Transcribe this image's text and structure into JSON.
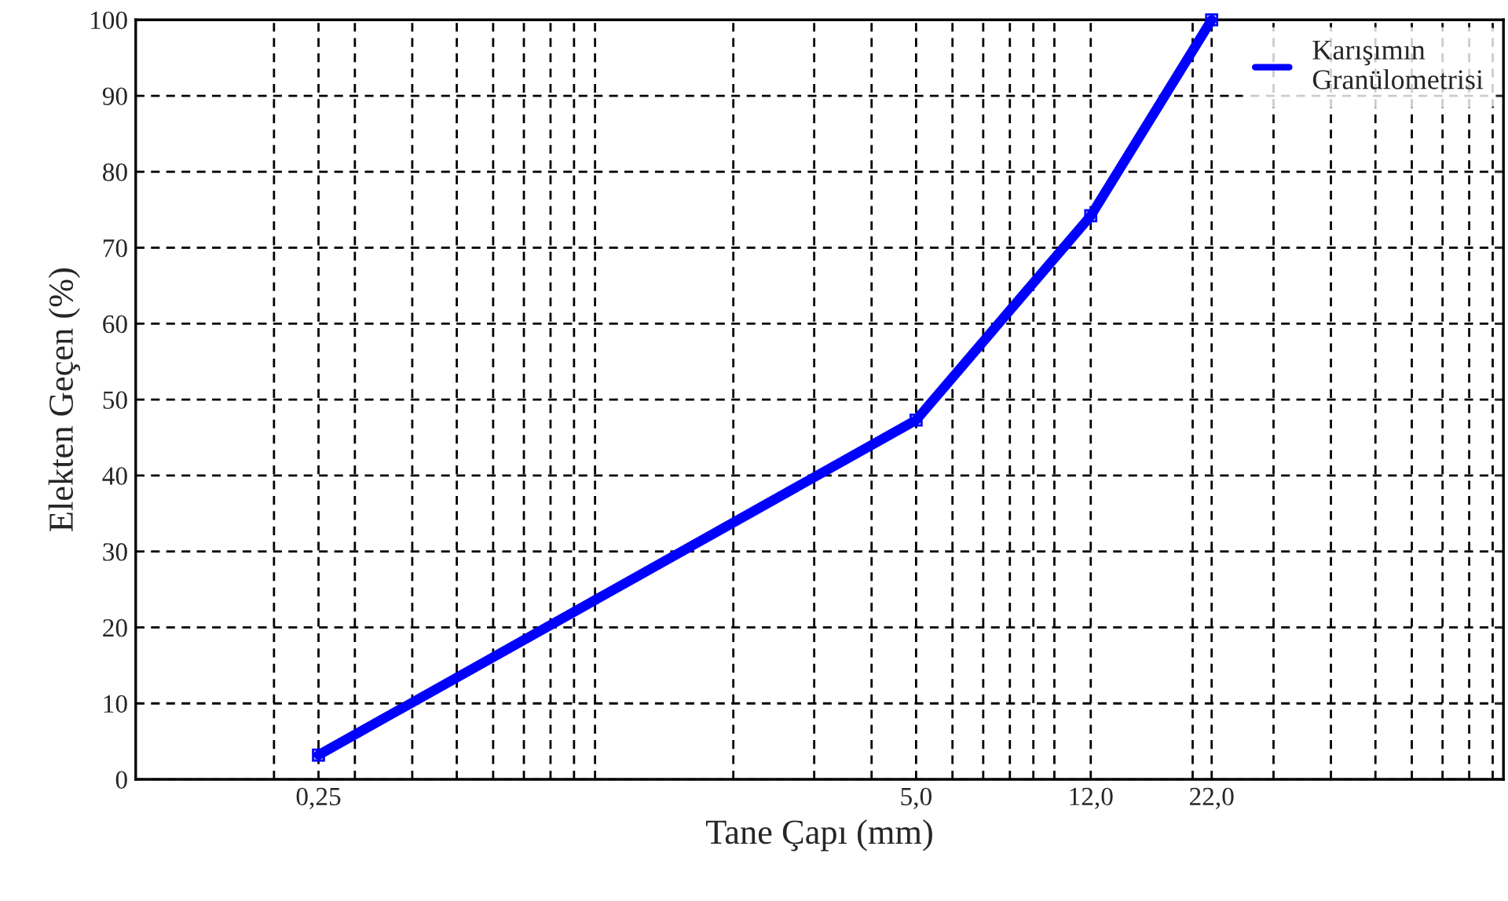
{
  "chart_data": {
    "type": "line",
    "xlabel": "Tane Çapı (mm)",
    "ylabel": "Elekten Geçen (%)",
    "x": [
      0.25,
      5.0,
      12.0,
      22.0
    ],
    "series": [
      {
        "name": "Karışımın\nGranülometrisi",
        "color": "#0000ff",
        "values": [
          3.2,
          47.3,
          74.2,
          100
        ]
      }
    ],
    "log": "x",
    "xlim": [
      0.1,
      95
    ],
    "ylim": [
      0,
      100
    ],
    "xticks": [
      {
        "value": 0.2,
        "label": null
      },
      {
        "value": 0.25,
        "label": "0,25"
      },
      {
        "value": 0.3,
        "label": null
      },
      {
        "value": 0.4,
        "label": null
      },
      {
        "value": 0.5,
        "label": null
      },
      {
        "value": 0.6,
        "label": null
      },
      {
        "value": 0.7,
        "label": null
      },
      {
        "value": 0.8,
        "label": null
      },
      {
        "value": 0.9,
        "label": null
      },
      {
        "value": 1,
        "label": null
      },
      {
        "value": 2,
        "label": null
      },
      {
        "value": 3,
        "label": null
      },
      {
        "value": 4,
        "label": null
      },
      {
        "value": 5,
        "label": "5,0"
      },
      {
        "value": 6,
        "label": null
      },
      {
        "value": 7,
        "label": null
      },
      {
        "value": 8,
        "label": null
      },
      {
        "value": 9,
        "label": null
      },
      {
        "value": 10,
        "label": null
      },
      {
        "value": 12,
        "label": "12,0"
      },
      {
        "value": 20,
        "label": null
      },
      {
        "value": 22,
        "label": "22,0"
      },
      {
        "value": 30,
        "label": null
      },
      {
        "value": 40,
        "label": null
      },
      {
        "value": 50,
        "label": null
      },
      {
        "value": 60,
        "label": null
      },
      {
        "value": 70,
        "label": null
      },
      {
        "value": 80,
        "label": null
      },
      {
        "value": 90,
        "label": null
      }
    ],
    "yticks": [
      0,
      10,
      20,
      30,
      40,
      50,
      60,
      70,
      80,
      90,
      100
    ],
    "grid": true,
    "legend": "top right",
    "marker": "square",
    "line_style": "solid"
  }
}
